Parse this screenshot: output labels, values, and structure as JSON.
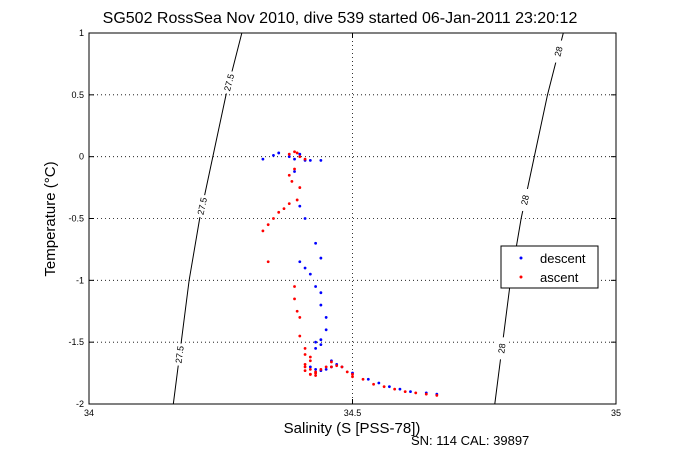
{
  "chart_data": {
    "type": "scatter",
    "title": "SG502 RossSea Nov 2010, dive 539 started 06-Jan-2011 23:20:12",
    "xlabel": "Salinity (S [PSS-78])",
    "ylabel": "Temperature (°C)",
    "xlim": [
      34,
      35
    ],
    "ylim": [
      -2,
      1
    ],
    "x_ticks": [
      "34",
      "34.5",
      "35"
    ],
    "y_ticks": [
      "-2",
      "-1.5",
      "-1",
      "-0.5",
      "0",
      "0.5",
      "1"
    ],
    "grid": "dotted",
    "legend_position": "right",
    "footer": "SN: 114  CAL: 39897",
    "colors": {
      "descent": "#0000ff",
      "ascent": "#ff0000",
      "contour": "#000000"
    },
    "series": [
      {
        "name": "descent",
        "color": "#0000ff",
        "x": [
          34.33,
          34.35,
          34.36,
          34.38,
          34.39,
          34.4,
          34.41,
          34.42,
          34.39,
          34.4,
          34.41,
          34.4,
          34.41,
          34.42,
          34.43,
          34.43,
          34.44,
          34.44,
          34.44,
          34.45,
          34.45,
          34.44,
          34.43,
          34.44,
          34.43,
          34.42,
          34.43,
          34.44,
          34.45,
          34.46,
          34.47,
          34.48,
          34.5,
          34.53,
          34.55,
          34.57,
          34.59,
          34.61,
          34.64,
          34.66,
          34.46,
          34.44
        ],
        "y": [
          -0.02,
          0.01,
          0.03,
          0.0,
          -0.02,
          0.02,
          -0.03,
          -0.03,
          -0.12,
          -0.4,
          -0.5,
          -0.85,
          -0.9,
          -0.95,
          -1.05,
          -0.7,
          -0.82,
          -1.1,
          -1.2,
          -1.3,
          -1.4,
          -1.48,
          -1.5,
          -1.52,
          -1.55,
          -1.7,
          -1.72,
          -1.73,
          -1.72,
          -1.7,
          -1.68,
          -1.7,
          -1.75,
          -1.8,
          -1.83,
          -1.86,
          -1.88,
          -1.9,
          -1.91,
          -1.92,
          -1.65,
          -0.03
        ]
      },
      {
        "name": "ascent",
        "color": "#ff0000",
        "x": [
          34.38,
          34.39,
          34.395,
          34.4,
          34.41,
          34.39,
          34.38,
          34.385,
          34.4,
          34.395,
          34.38,
          34.37,
          34.36,
          34.35,
          34.34,
          34.33,
          34.34,
          34.39,
          34.395,
          34.4,
          34.4,
          34.41,
          34.41,
          34.42,
          34.42,
          34.41,
          34.42,
          34.43,
          34.42,
          34.41,
          34.41,
          34.43,
          34.44,
          34.46,
          34.47,
          34.48,
          34.49,
          34.5,
          34.52,
          34.54,
          34.56,
          34.58,
          34.6,
          34.62,
          34.64,
          34.66,
          34.42,
          34.43,
          34.45,
          34.5,
          34.46,
          34.39
        ],
        "y": [
          0.02,
          0.04,
          0.03,
          0.0,
          -0.02,
          -0.1,
          -0.15,
          -0.2,
          -0.25,
          -0.35,
          -0.38,
          -0.42,
          -0.45,
          -0.5,
          -0.55,
          -0.6,
          -0.85,
          -1.15,
          -1.25,
          -1.3,
          -1.45,
          -1.55,
          -1.6,
          -1.62,
          -1.65,
          -1.7,
          -1.72,
          -1.75,
          -1.76,
          -1.73,
          -1.68,
          -1.74,
          -1.72,
          -1.7,
          -1.69,
          -1.7,
          -1.74,
          -1.76,
          -1.8,
          -1.84,
          -1.86,
          -1.88,
          -1.9,
          -1.91,
          -1.92,
          -1.93,
          -1.76,
          -1.77,
          -1.7,
          -1.78,
          -1.66,
          -1.05
        ]
      }
    ],
    "contours": [
      {
        "label": "27.5",
        "points": [
          [
            34.16,
            -2
          ],
          [
            34.175,
            -1.5
          ],
          [
            34.19,
            -1.0
          ],
          [
            34.21,
            -0.5
          ],
          [
            34.235,
            0.0
          ],
          [
            34.26,
            0.5
          ],
          [
            34.29,
            1.0
          ]
        ],
        "label_y": [
          -1.6,
          -0.4,
          0.6
        ]
      },
      {
        "label": "28",
        "points": [
          [
            34.77,
            -2
          ],
          [
            34.785,
            -1.5
          ],
          [
            34.8,
            -1.0
          ],
          [
            34.82,
            -0.5
          ],
          [
            34.845,
            0.0
          ],
          [
            34.87,
            0.5
          ],
          [
            34.9,
            1.0
          ]
        ],
        "label_y": [
          -1.55,
          -0.35,
          0.85
        ]
      }
    ]
  }
}
